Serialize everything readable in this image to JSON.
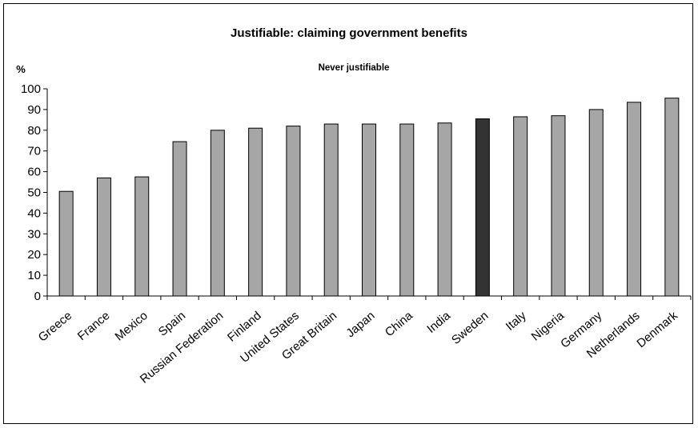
{
  "chart_data": {
    "type": "bar",
    "title": "Justifiable: claiming government benefits",
    "subtitle": "Never justifiable",
    "ylabel": "%",
    "xlabel": "",
    "ylim": [
      0,
      100
    ],
    "yticks": [
      0,
      10,
      20,
      30,
      40,
      50,
      60,
      70,
      80,
      90,
      100
    ],
    "grid": false,
    "categories": [
      "Greece",
      "France",
      "Mexico",
      "Spain",
      "Russian Federation",
      "Finland",
      "United States",
      "Great Britain",
      "Japan",
      "China",
      "India",
      "Sweden",
      "Italy",
      "Nigeria",
      "Germany",
      "Netherlands",
      "Denmark"
    ],
    "values": [
      50.5,
      57,
      57.5,
      74.5,
      80,
      81,
      82,
      83,
      83,
      83,
      83.5,
      85.5,
      86.5,
      87,
      90,
      93.5,
      95.5
    ],
    "highlight": "Sweden",
    "colors": {
      "bar": "#a6a6a6",
      "highlight": "#333333",
      "stroke": "#000000"
    }
  }
}
